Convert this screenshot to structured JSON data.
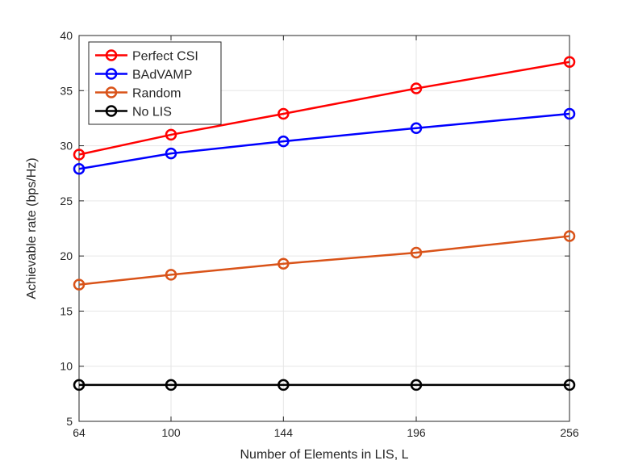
{
  "chart_data": {
    "type": "line",
    "xlabel": "Number of Elements in LIS, L",
    "ylabel": "Achievable rate (bps/Hz)",
    "x": [
      64,
      100,
      144,
      196,
      256
    ],
    "x_ticks": [
      64,
      100,
      144,
      196,
      256
    ],
    "y_ticks": [
      5,
      10,
      15,
      20,
      25,
      30,
      35,
      40
    ],
    "ylim": [
      5,
      40
    ],
    "grid": true,
    "legend_position": "top-left",
    "marker": "circle",
    "series": [
      {
        "name": "Perfect CSI",
        "color": "#ff0000",
        "values": [
          29.2,
          31.0,
          32.9,
          35.2,
          37.6
        ]
      },
      {
        "name": "BAdVAMP",
        "color": "#0000ff",
        "values": [
          27.9,
          29.3,
          30.4,
          31.6,
          32.9
        ]
      },
      {
        "name": "Random",
        "color": "#d95319",
        "values": [
          17.4,
          18.3,
          19.3,
          20.3,
          21.8
        ]
      },
      {
        "name": "No LIS",
        "color": "#000000",
        "values": [
          8.3,
          8.3,
          8.3,
          8.3,
          8.3
        ]
      }
    ]
  }
}
